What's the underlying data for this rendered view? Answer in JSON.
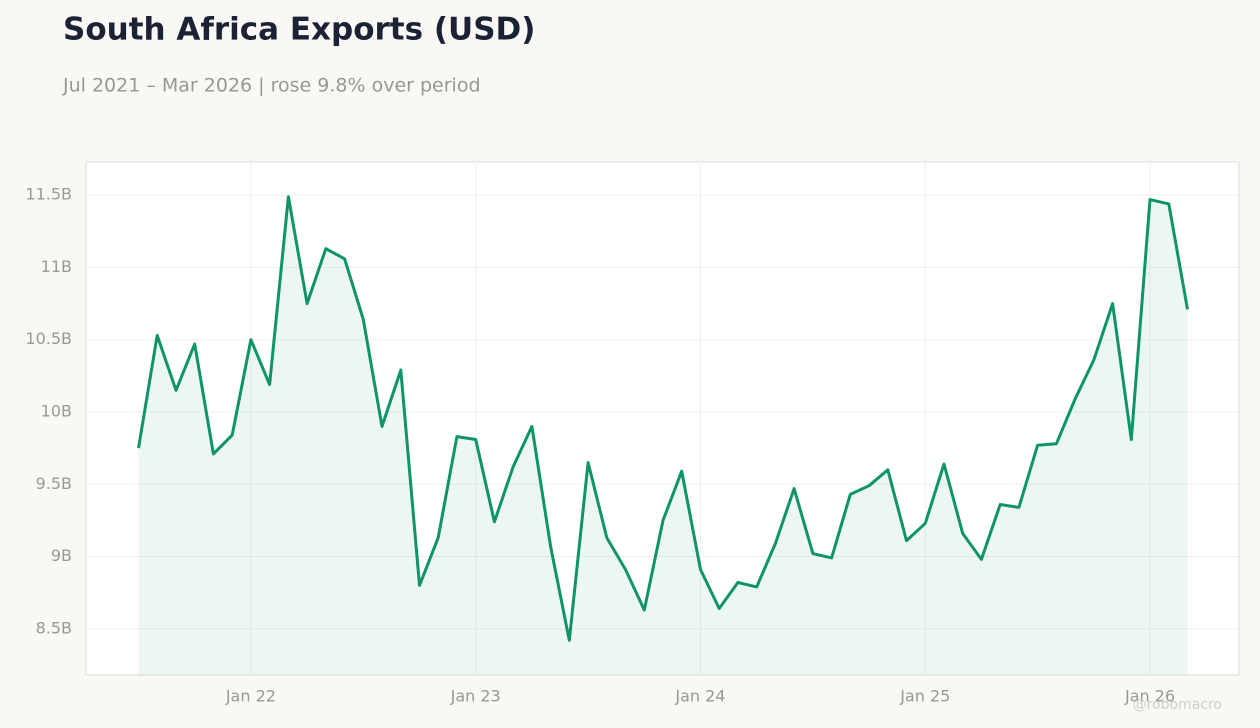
{
  "chart_data": {
    "type": "line",
    "title": "South Africa Exports (USD)",
    "subtitle": "Jul 2021 – Mar 2026 | rose 9.8% over period",
    "watermark": "@robomacro",
    "x": [
      "2021-07",
      "2021-08",
      "2021-09",
      "2021-10",
      "2021-11",
      "2021-12",
      "2022-01",
      "2022-02",
      "2022-03",
      "2022-04",
      "2022-05",
      "2022-06",
      "2022-07",
      "2022-08",
      "2022-09",
      "2022-10",
      "2022-11",
      "2022-12",
      "2023-01",
      "2023-02",
      "2023-03",
      "2023-04",
      "2023-05",
      "2023-06",
      "2023-07",
      "2023-08",
      "2023-09",
      "2023-10",
      "2023-11",
      "2023-12",
      "2024-01",
      "2024-02",
      "2024-03",
      "2024-04",
      "2024-05",
      "2024-06",
      "2024-07",
      "2024-08",
      "2024-09",
      "2024-10",
      "2024-11",
      "2024-12",
      "2025-01",
      "2025-02",
      "2025-03",
      "2025-04",
      "2025-05",
      "2025-06",
      "2025-07",
      "2025-08",
      "2025-09",
      "2025-10",
      "2025-11",
      "2025-12",
      "2026-01",
      "2026-02",
      "2026-03"
    ],
    "series": [
      {
        "name": "Exports",
        "color": "#0f9468",
        "values": [
          9.75,
          10.53,
          10.15,
          10.47,
          9.71,
          9.84,
          10.5,
          10.19,
          11.49,
          10.75,
          11.13,
          11.06,
          10.64,
          9.9,
          10.29,
          8.8,
          9.13,
          9.83,
          9.81,
          9.24,
          9.62,
          9.9,
          9.07,
          8.42,
          9.65,
          9.13,
          8.91,
          8.63,
          9.25,
          9.59,
          8.91,
          8.64,
          8.82,
          8.79,
          9.09,
          9.47,
          9.02,
          8.99,
          9.43,
          9.49,
          9.6,
          9.11,
          9.23,
          9.64,
          9.16,
          8.98,
          9.36,
          9.34,
          9.77,
          9.78,
          10.09,
          10.36,
          10.75,
          9.81,
          11.47,
          11.44,
          10.71
        ]
      }
    ],
    "ylim": [
      8.18,
      11.73
    ],
    "yticks": [
      {
        "value": 8.5,
        "label": "8.5B"
      },
      {
        "value": 9,
        "label": "9B"
      },
      {
        "value": 9.5,
        "label": "9.5B"
      },
      {
        "value": 10,
        "label": "10B"
      },
      {
        "value": 10.5,
        "label": "10.5B"
      },
      {
        "value": 11,
        "label": "11B"
      },
      {
        "value": 11.5,
        "label": "11.5B"
      }
    ],
    "xticks": [
      {
        "value": "2022-01",
        "label": "Jan 22"
      },
      {
        "value": "2023-01",
        "label": "Jan 23"
      },
      {
        "value": "2024-01",
        "label": "Jan 24"
      },
      {
        "value": "2025-01",
        "label": "Jan 25"
      },
      {
        "value": "2026-01",
        "label": "Jan 26"
      }
    ],
    "grid": true
  }
}
